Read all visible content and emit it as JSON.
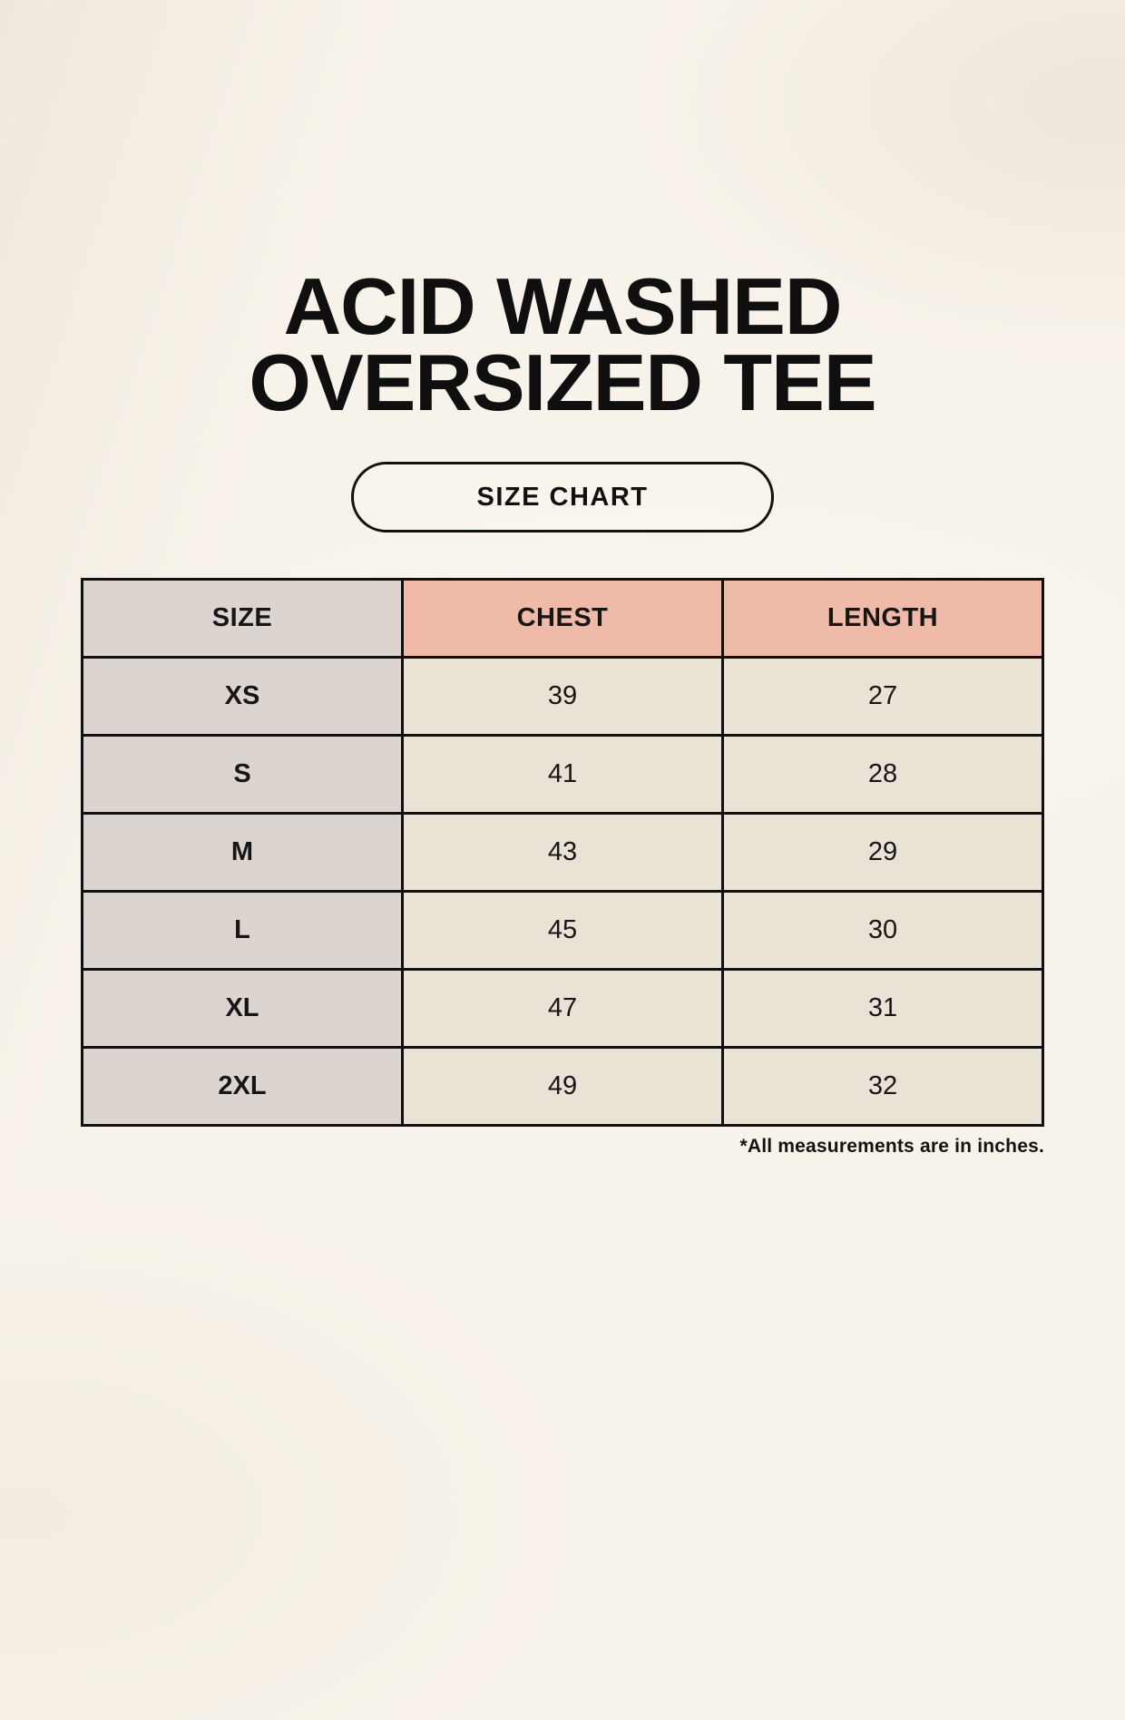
{
  "page": {
    "title_line1": "ACID WASHED",
    "title_line2": "OVERSIZED TEE",
    "badge_label": "SIZE CHART",
    "footnote": "*All measurements are in inches."
  },
  "colors": {
    "background": "#f8f3ea",
    "header_pink": "#f0baa9",
    "size_column_gray": "#dcd4cf",
    "value_cell_beige": "#e9e2d5",
    "border_black": "#101010",
    "text": "#0f0f0f"
  },
  "chart_data": {
    "type": "table",
    "columns": [
      "SIZE",
      "CHEST",
      "LENGTH"
    ],
    "rows": [
      [
        "XS",
        "39",
        "27"
      ],
      [
        "S",
        "41",
        "28"
      ],
      [
        "M",
        "43",
        "29"
      ],
      [
        "L",
        "45",
        "30"
      ],
      [
        "XL",
        "47",
        "31"
      ],
      [
        "2XL",
        "49",
        "32"
      ]
    ]
  }
}
